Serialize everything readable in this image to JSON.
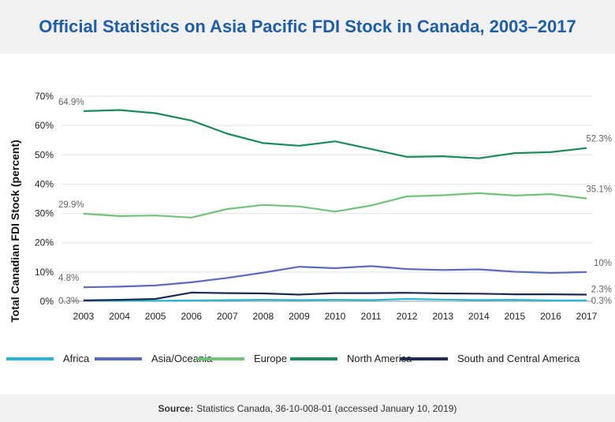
{
  "header": {
    "title": "Official Statistics on Asia Pacific FDI Stock in Canada, 2003–2017"
  },
  "footer": {
    "source_label": "Source:",
    "source_text": "Statistics Canada, 36-10-008-01 (accessed January 10, 2019)"
  },
  "chart_data": {
    "type": "line",
    "title": "Official Statistics on Asia Pacific FDI Stock in Canada, 2003–2017",
    "xlabel": "",
    "ylabel": "Total Canadian FDI Stock (percent)",
    "ylim": [
      0,
      70
    ],
    "yticks": [
      "0%",
      "10%",
      "20%",
      "30%",
      "40%",
      "50%",
      "60%",
      "70%"
    ],
    "grid": true,
    "legend_position": "bottom",
    "x": [
      "2003",
      "2004",
      "2005",
      "2006",
      "2007",
      "2008",
      "2009",
      "2010",
      "2011",
      "2012",
      "2013",
      "2014",
      "2015",
      "2016",
      "2017"
    ],
    "series": [
      {
        "name": "Africa",
        "color": "#29b6d6",
        "values": [
          0.3,
          0.2,
          0.2,
          0.3,
          0.4,
          0.5,
          0.4,
          0.5,
          0.4,
          0.8,
          0.6,
          0.4,
          0.5,
          0.3,
          0.3
        ]
      },
      {
        "name": "Asia/Oceania",
        "color": "#5b6bbf",
        "values": [
          4.8,
          5.0,
          5.4,
          6.5,
          8.0,
          9.8,
          11.8,
          11.3,
          12.0,
          11.0,
          10.7,
          10.9,
          10.1,
          9.7,
          10.0
        ]
      },
      {
        "name": "Europe",
        "color": "#72c27b",
        "values": [
          29.9,
          29.1,
          29.3,
          28.6,
          31.5,
          32.9,
          32.4,
          30.6,
          32.7,
          35.8,
          36.2,
          36.9,
          36.1,
          36.6,
          35.1
        ]
      },
      {
        "name": "North America",
        "color": "#1b8a5c",
        "values": [
          64.9,
          65.3,
          64.2,
          61.7,
          57.2,
          54.0,
          53.1,
          54.6,
          52.0,
          49.3,
          49.5,
          48.8,
          50.6,
          50.9,
          52.3
        ]
      },
      {
        "name": "South and Central America",
        "color": "#1c2b55",
        "values": [
          0.3,
          0.5,
          0.8,
          3.0,
          2.8,
          2.7,
          2.3,
          2.8,
          2.8,
          2.9,
          2.7,
          2.6,
          2.4,
          2.4,
          2.3
        ]
      }
    ],
    "annotations": [
      {
        "series": "North America",
        "x": "2003",
        "label": "64.9%"
      },
      {
        "series": "North America",
        "x": "2017",
        "label": "52.3%"
      },
      {
        "series": "Europe",
        "x": "2003",
        "label": "29.9%"
      },
      {
        "series": "Europe",
        "x": "2017",
        "label": "35.1%"
      },
      {
        "series": "Asia/Oceania",
        "x": "2003",
        "label": "4.8%"
      },
      {
        "series": "Asia/Oceania",
        "x": "2017",
        "label": "10%"
      },
      {
        "series": "Africa",
        "x": "2003",
        "label": "0.3%"
      },
      {
        "series": "South and Central America",
        "x": "2017",
        "label": "2.3%"
      },
      {
        "series": "Africa",
        "x": "2017",
        "label": "0.3%"
      }
    ]
  }
}
